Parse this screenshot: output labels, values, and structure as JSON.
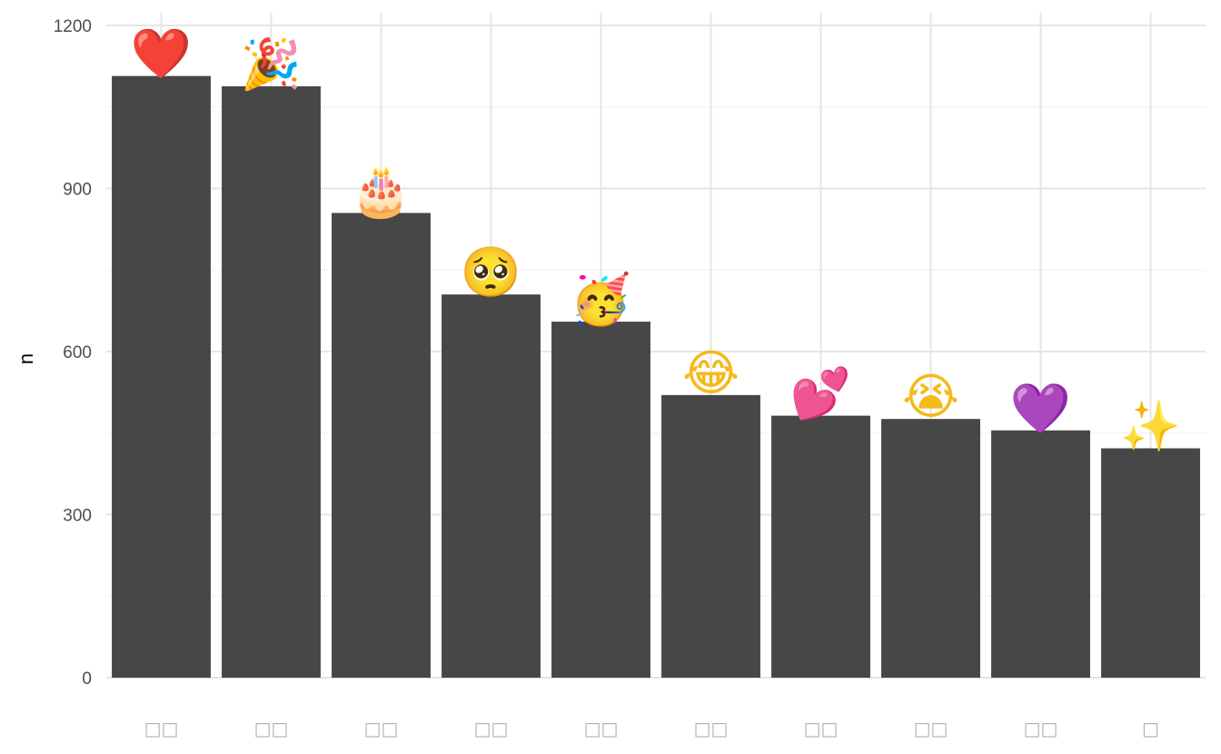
{
  "chart_data": {
    "type": "bar",
    "ylabel": "n",
    "xlabel": "",
    "ylim": [
      0,
      1230
    ],
    "yticks": [
      0,
      300,
      600,
      900,
      1200
    ],
    "grid": true,
    "bar_color": "#474747",
    "categories": [
      "□□",
      "□□",
      "□□",
      "□□",
      "□□",
      "□□",
      "□□",
      "□□",
      "□□",
      "□"
    ],
    "values": [
      1107,
      1088,
      855,
      705,
      655,
      520,
      482,
      476,
      455,
      422
    ],
    "bar_labels": [
      "❤️",
      "🎉",
      "🎂",
      "🥺",
      "🥳",
      "😂",
      "💕",
      "😭",
      "💜",
      "✨"
    ],
    "label_colors": [
      "#e0202e",
      "#f2a516",
      "#c9a06a",
      "#f5b91c",
      "#f5b91c",
      "#f5b91c",
      "#e8168d",
      "#f5b91c",
      "#8b22e0",
      "#f5c518"
    ]
  }
}
